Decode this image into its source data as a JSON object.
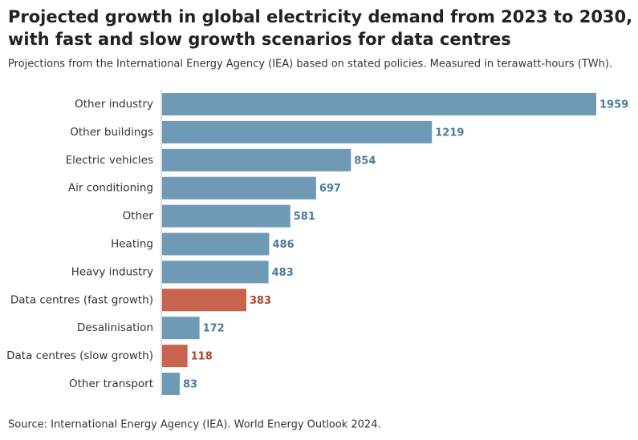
{
  "chart_data": {
    "type": "bar",
    "orientation": "horizontal",
    "title": [
      "Projected growth in global electricity demand from 2023 to 2030,",
      "with fast and slow growth scenarios for data centres"
    ],
    "subtitle": "Projections from the International Energy Agency (IEA) based on stated policies. Measured in terawatt-hours (TWh).",
    "source": "Source: International Energy Agency (IEA). World Energy Outlook 2024.",
    "categories": [
      "Other industry",
      "Other buildings",
      "Electric vehicles",
      "Air conditioning",
      "Other",
      "Heating",
      "Heavy industry",
      "Data centres (fast growth)",
      "Desalinisation",
      "Data centres (slow growth)",
      "Other transport"
    ],
    "values": [
      1959,
      1219,
      854,
      697,
      581,
      486,
      483,
      383,
      172,
      118,
      83
    ],
    "colors": [
      "#6f9ab5",
      "#6f9ab5",
      "#6f9ab5",
      "#6f9ab5",
      "#6f9ab5",
      "#6f9ab5",
      "#6f9ab5",
      "#c8634e",
      "#6f9ab5",
      "#c8634e",
      "#6f9ab5"
    ],
    "value_label_colors": [
      "#4b7a9a",
      "#4b7a9a",
      "#4b7a9a",
      "#4b7a9a",
      "#4b7a9a",
      "#4b7a9a",
      "#4b7a9a",
      "#b3432c",
      "#4b7a9a",
      "#b3432c",
      "#4b7a9a"
    ]
  }
}
